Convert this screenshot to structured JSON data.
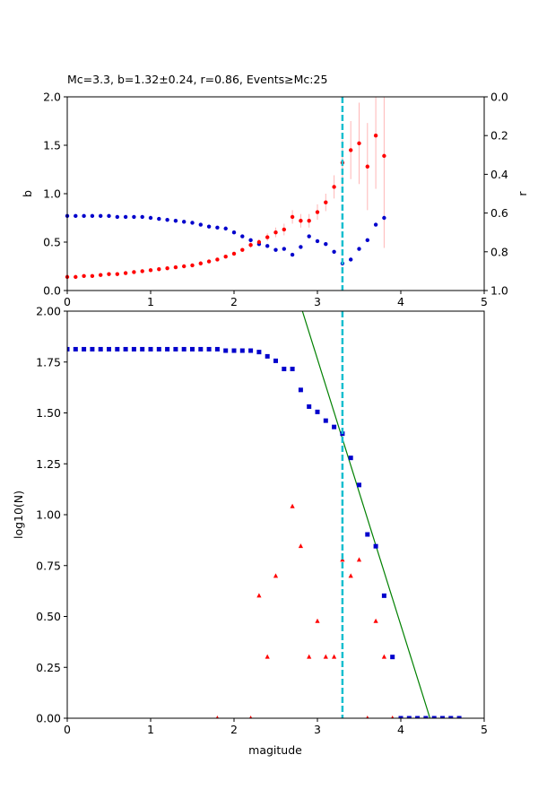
{
  "chart_data": [
    {
      "type": "scatter",
      "title": "Mc=3.3, b=1.32±0.24, r=0.86, Events≥Mc:25",
      "ylabel": "b",
      "y2label": "r",
      "xlim": [
        0,
        5
      ],
      "ylim": [
        0,
        2
      ],
      "y2lim": [
        1,
        0
      ],
      "xticks": [
        "0",
        "1",
        "2",
        "3",
        "4",
        "5"
      ],
      "yticks": [
        "0.0",
        "0.5",
        "1.0",
        "1.5",
        "2.0"
      ],
      "y2ticks": [
        "0.0",
        "0.2",
        "0.4",
        "0.6",
        "0.8",
        "1.0"
      ],
      "mc_line": 3.3,
      "b_series": {
        "color": "#ff0000",
        "errorbar_color": "#ffb6b6",
        "x": [
          0.0,
          0.1,
          0.2,
          0.3,
          0.4,
          0.5,
          0.6,
          0.7,
          0.8,
          0.9,
          1.0,
          1.1,
          1.2,
          1.3,
          1.4,
          1.5,
          1.6,
          1.7,
          1.8,
          1.9,
          2.0,
          2.1,
          2.2,
          2.3,
          2.4,
          2.5,
          2.6,
          2.7,
          2.8,
          2.9,
          3.0,
          3.1,
          3.2,
          3.3,
          3.4,
          3.5,
          3.6,
          3.7,
          3.8
        ],
        "y": [
          0.14,
          0.14,
          0.15,
          0.15,
          0.16,
          0.17,
          0.17,
          0.18,
          0.19,
          0.2,
          0.21,
          0.22,
          0.23,
          0.24,
          0.25,
          0.26,
          0.28,
          0.3,
          0.32,
          0.35,
          0.38,
          0.42,
          0.47,
          0.5,
          0.55,
          0.6,
          0.63,
          0.76,
          0.72,
          0.72,
          0.81,
          0.91,
          1.07,
          1.32,
          1.45,
          1.52,
          1.28,
          1.6,
          1.39
        ],
        "err": [
          0,
          0,
          0,
          0,
          0,
          0,
          0,
          0,
          0,
          0,
          0,
          0,
          0,
          0,
          0,
          0,
          0,
          0,
          0,
          0,
          0,
          0.02,
          0.03,
          0.03,
          0.04,
          0.05,
          0.06,
          0.07,
          0.07,
          0.07,
          0.08,
          0.09,
          0.12,
          0.24,
          0.3,
          0.42,
          0.45,
          0.55,
          0.95
        ]
      },
      "r_series": {
        "color": "#0000cc",
        "x": [
          0.0,
          0.1,
          0.2,
          0.3,
          0.4,
          0.5,
          0.6,
          0.7,
          0.8,
          0.9,
          1.0,
          1.1,
          1.2,
          1.3,
          1.4,
          1.5,
          1.6,
          1.7,
          1.8,
          1.9,
          2.0,
          2.1,
          2.2,
          2.3,
          2.4,
          2.5,
          2.6,
          2.7,
          2.8,
          2.9,
          3.0,
          3.1,
          3.2,
          3.3,
          3.4,
          3.5,
          3.6,
          3.7,
          3.8
        ],
        "r": [
          0.615,
          0.615,
          0.615,
          0.615,
          0.615,
          0.615,
          0.62,
          0.62,
          0.62,
          0.62,
          0.625,
          0.63,
          0.635,
          0.64,
          0.645,
          0.65,
          0.66,
          0.67,
          0.675,
          0.68,
          0.7,
          0.72,
          0.74,
          0.76,
          0.77,
          0.79,
          0.785,
          0.815,
          0.775,
          0.72,
          0.745,
          0.76,
          0.8,
          0.86,
          0.84,
          0.785,
          0.74,
          0.66,
          0.625
        ]
      }
    },
    {
      "type": "scatter",
      "xlabel": "magitude",
      "ylabel": "log10(N)",
      "xlim": [
        0,
        5
      ],
      "ylim": [
        0,
        2
      ],
      "xticks": [
        "0",
        "1",
        "2",
        "3",
        "4",
        "5"
      ],
      "yticks": [
        "0.00",
        "0.25",
        "0.50",
        "0.75",
        "1.00",
        "1.25",
        "1.50",
        "1.75",
        "2.00"
      ],
      "mc_line": 3.3,
      "cumulative": {
        "color": "#0000cc",
        "x": [
          0.0,
          0.1,
          0.2,
          0.3,
          0.4,
          0.5,
          0.6,
          0.7,
          0.8,
          0.9,
          1.0,
          1.1,
          1.2,
          1.3,
          1.4,
          1.5,
          1.6,
          1.7,
          1.8,
          1.9,
          2.0,
          2.1,
          2.2,
          2.3,
          2.4,
          2.5,
          2.6,
          2.7,
          2.8,
          2.9,
          3.0,
          3.1,
          3.2,
          3.3,
          3.4,
          3.5,
          3.6,
          3.7,
          3.8,
          3.9,
          4.0,
          4.1,
          4.2,
          4.3,
          4.4,
          4.5,
          4.6,
          4.7
        ],
        "y": [
          1.813,
          1.813,
          1.813,
          1.813,
          1.813,
          1.813,
          1.813,
          1.813,
          1.813,
          1.813,
          1.813,
          1.813,
          1.813,
          1.813,
          1.813,
          1.813,
          1.813,
          1.813,
          1.813,
          1.806,
          1.806,
          1.806,
          1.806,
          1.799,
          1.778,
          1.756,
          1.716,
          1.716,
          1.613,
          1.531,
          1.505,
          1.462,
          1.431,
          1.398,
          1.279,
          1.146,
          0.903,
          0.845,
          0.602,
          0.301,
          0.0,
          0.0,
          0.0,
          0.0,
          0.0,
          0.0,
          0.0,
          0.0
        ]
      },
      "noncumulative": {
        "color": "#ff0000",
        "x": [
          1.8,
          2.2,
          2.3,
          2.4,
          2.5,
          2.7,
          2.8,
          2.9,
          3.0,
          3.1,
          3.2,
          3.3,
          3.4,
          3.5,
          3.6,
          3.7,
          3.8,
          3.9
        ],
        "y": [
          0.0,
          0.0,
          0.602,
          0.301,
          0.699,
          1.041,
          0.845,
          0.301,
          0.477,
          0.301,
          0.301,
          0.778,
          0.699,
          0.778,
          0.0,
          0.477,
          0.301,
          0.0
        ]
      },
      "fit_line": {
        "color": "#008000",
        "x": [
          2.82,
          4.35
        ],
        "y": [
          2.0,
          0.0
        ]
      }
    }
  ]
}
